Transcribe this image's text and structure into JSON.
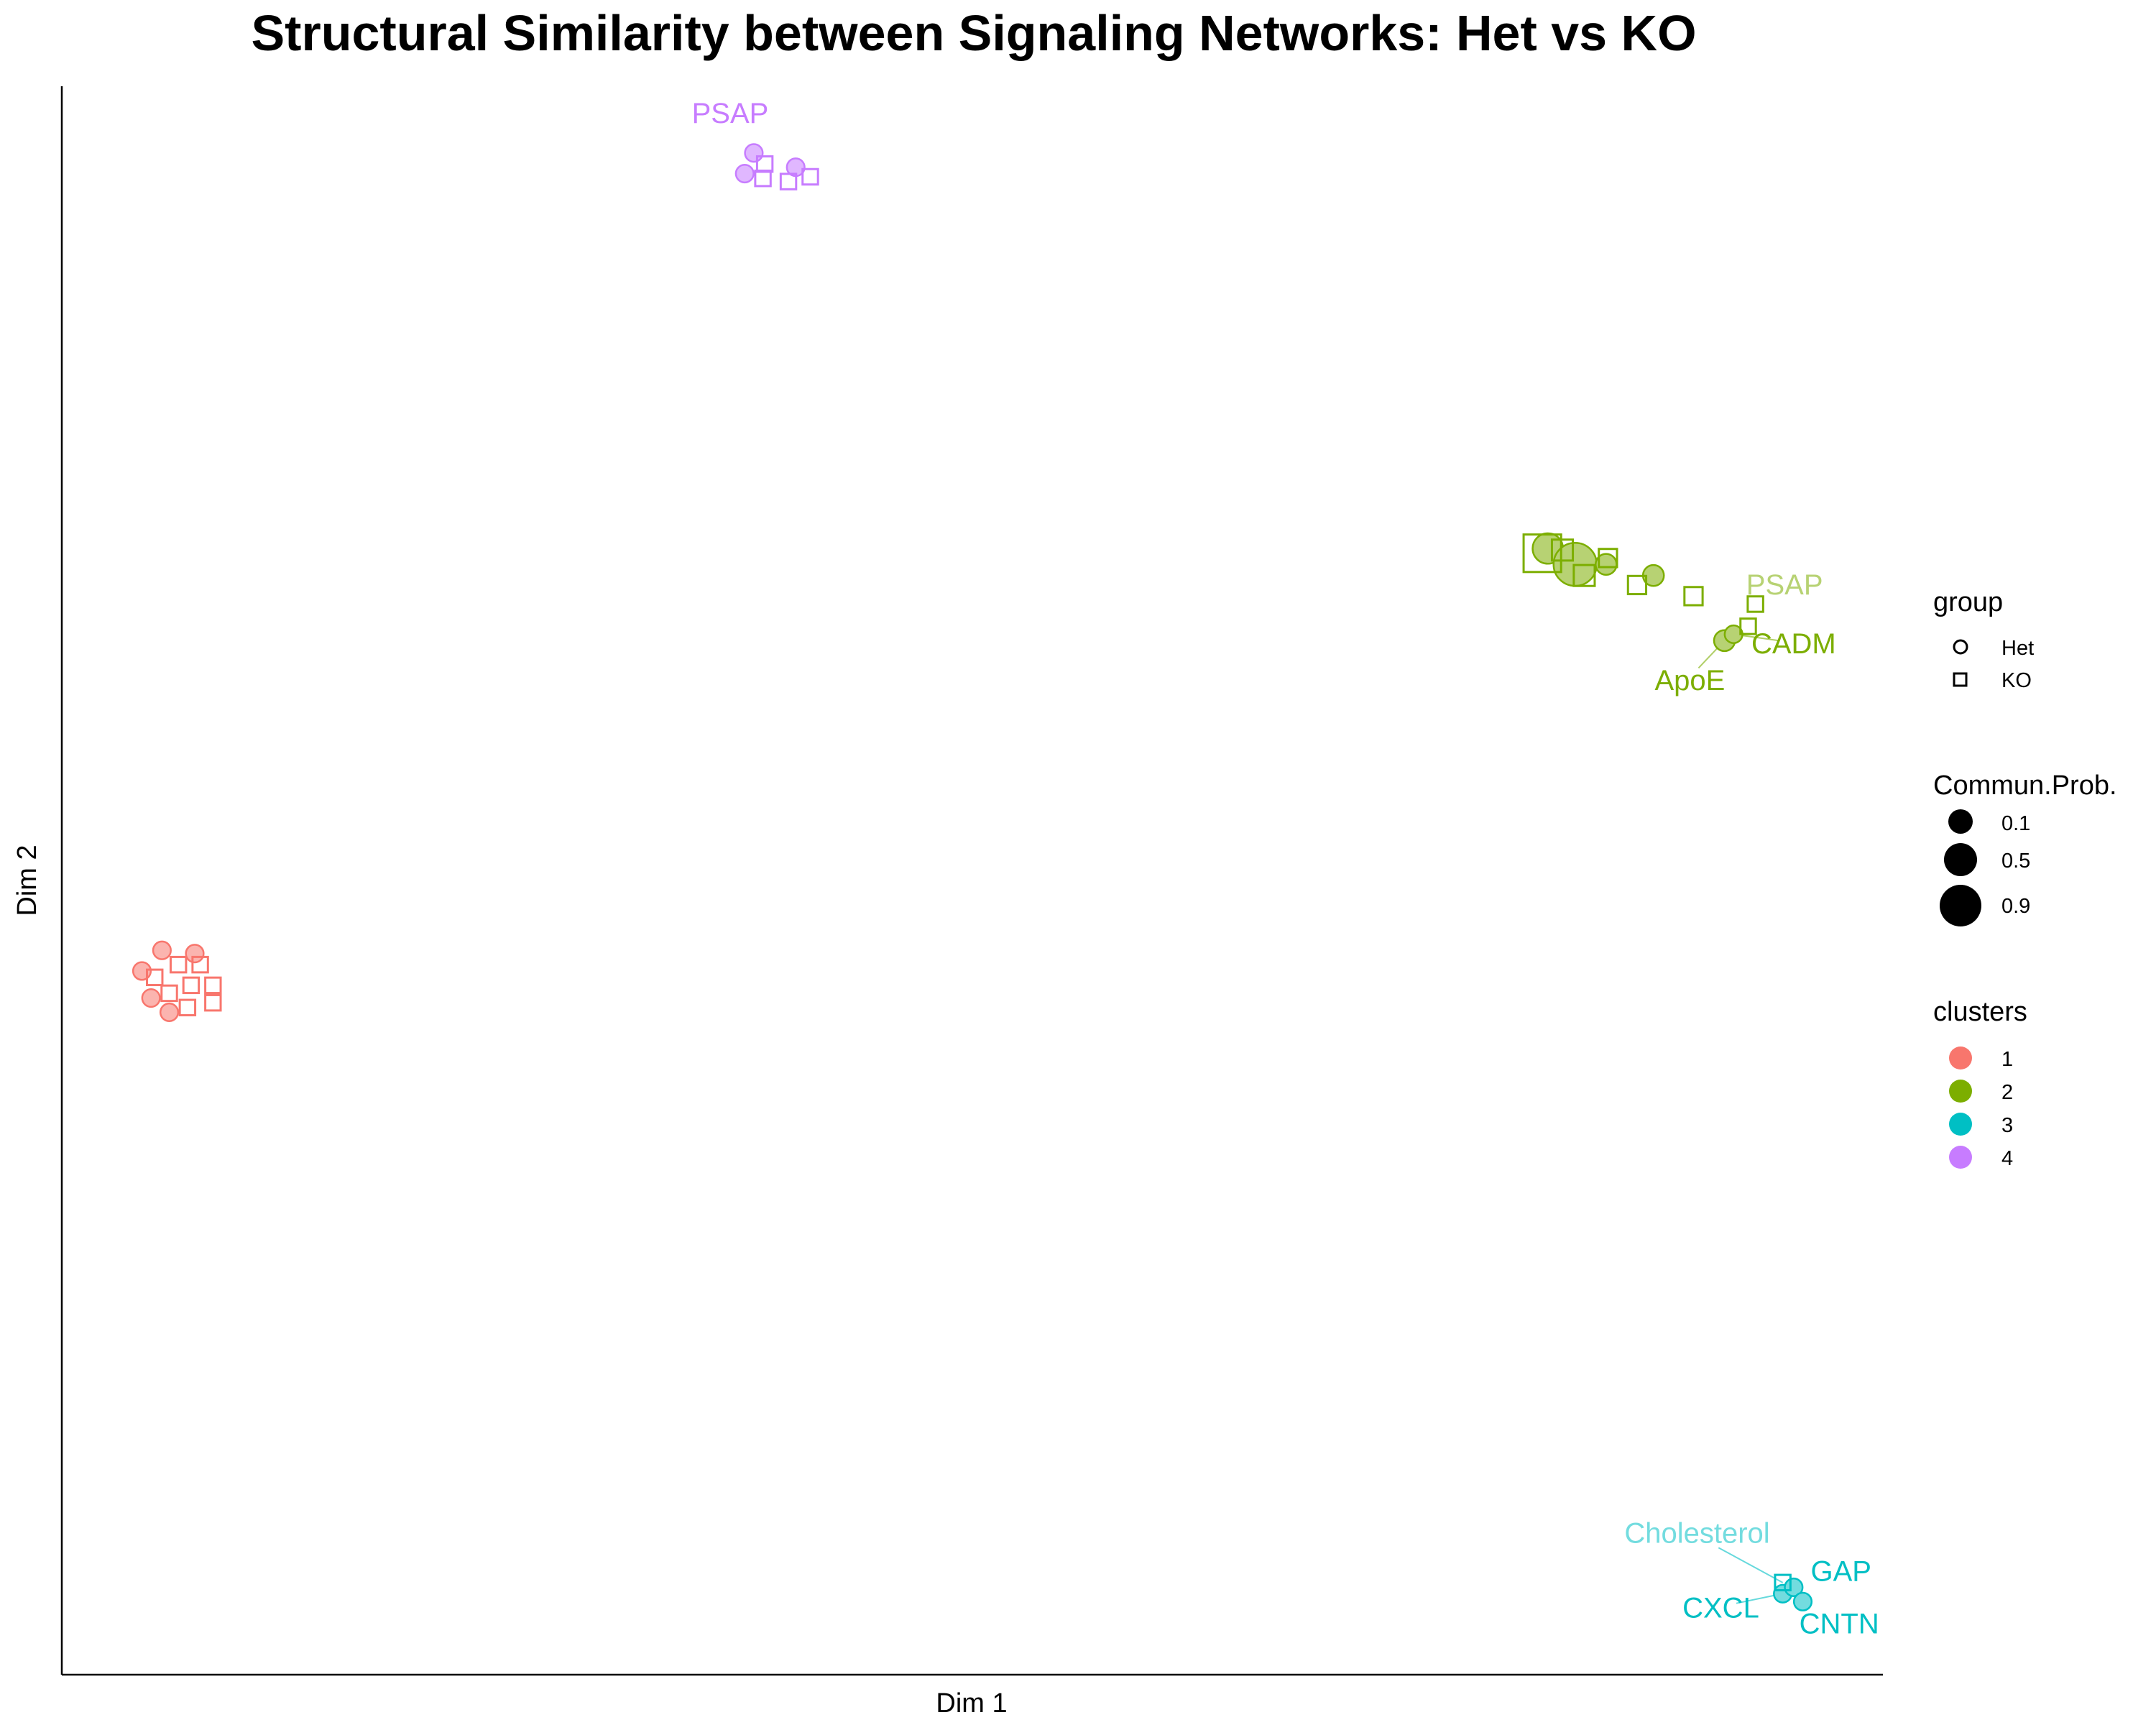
{
  "chart_data": {
    "type": "scatter",
    "title": "Structural Similarity between Signaling Networks: Het vs KO",
    "xlabel": "Dim 1",
    "ylabel": "Dim 2",
    "xlim": [
      0,
      100
    ],
    "ylim": [
      0,
      100
    ],
    "grid": false,
    "legend_position": "right",
    "legends": {
      "group": {
        "title": "group",
        "entries": [
          {
            "label": "Het",
            "shape": "circle"
          },
          {
            "label": "KO",
            "shape": "square"
          }
        ]
      },
      "size": {
        "title": "Commun.Prob.",
        "entries": [
          "0.1",
          "0.5",
          "0.9"
        ]
      },
      "clusters": {
        "title": "clusters",
        "entries": [
          {
            "label": "1",
            "color": "#F8766D"
          },
          {
            "label": "2",
            "color": "#7CAE00"
          },
          {
            "label": "3",
            "color": "#00BFC4"
          },
          {
            "label": "4",
            "color": "#C77CFF"
          }
        ]
      }
    },
    "cluster_colors": {
      "1": "#F8766D",
      "2": "#7CAE00",
      "3": "#00BFC4",
      "4": "#C77CFF"
    },
    "points": [
      {
        "x": 4.4,
        "y": 44.3,
        "cluster": "1",
        "group": "Het",
        "prob": 0.1
      },
      {
        "x": 5.5,
        "y": 45.6,
        "cluster": "1",
        "group": "Het",
        "prob": 0.1
      },
      {
        "x": 7.3,
        "y": 45.4,
        "cluster": "1",
        "group": "Het",
        "prob": 0.1
      },
      {
        "x": 4.9,
        "y": 42.6,
        "cluster": "1",
        "group": "Het",
        "prob": 0.1
      },
      {
        "x": 5.9,
        "y": 41.7,
        "cluster": "1",
        "group": "Het",
        "prob": 0.1
      },
      {
        "x": 5.1,
        "y": 43.9,
        "cluster": "1",
        "group": "KO",
        "prob": 0.1
      },
      {
        "x": 6.4,
        "y": 44.7,
        "cluster": "1",
        "group": "KO",
        "prob": 0.1
      },
      {
        "x": 7.6,
        "y": 44.7,
        "cluster": "1",
        "group": "KO",
        "prob": 0.1
      },
      {
        "x": 5.9,
        "y": 42.9,
        "cluster": "1",
        "group": "KO",
        "prob": 0.1
      },
      {
        "x": 7.1,
        "y": 43.4,
        "cluster": "1",
        "group": "KO",
        "prob": 0.1
      },
      {
        "x": 8.3,
        "y": 43.4,
        "cluster": "1",
        "group": "KO",
        "prob": 0.1
      },
      {
        "x": 6.9,
        "y": 42.0,
        "cluster": "1",
        "group": "KO",
        "prob": 0.1
      },
      {
        "x": 8.3,
        "y": 42.3,
        "cluster": "1",
        "group": "KO",
        "prob": 0.1
      },
      {
        "x": 38.0,
        "y": 95.8,
        "cluster": "4",
        "group": "Het",
        "prob": 0.1
      },
      {
        "x": 37.5,
        "y": 94.5,
        "cluster": "4",
        "group": "Het",
        "prob": 0.1
      },
      {
        "x": 40.3,
        "y": 94.9,
        "cluster": "4",
        "group": "Het",
        "prob": 0.1
      },
      {
        "x": 38.6,
        "y": 95.1,
        "cluster": "4",
        "group": "KO",
        "prob": 0.1
      },
      {
        "x": 38.5,
        "y": 94.2,
        "cluster": "4",
        "group": "KO",
        "prob": 0.1
      },
      {
        "x": 39.9,
        "y": 94.0,
        "cluster": "4",
        "group": "KO",
        "prob": 0.1
      },
      {
        "x": 41.1,
        "y": 94.3,
        "cluster": "4",
        "group": "KO",
        "prob": 0.1
      },
      {
        "x": 81.6,
        "y": 70.9,
        "cluster": "2",
        "group": "Het",
        "prob": 0.5
      },
      {
        "x": 83.1,
        "y": 69.9,
        "cluster": "2",
        "group": "Het",
        "prob": 0.9
      },
      {
        "x": 84.8,
        "y": 69.9,
        "cluster": "2",
        "group": "Het",
        "prob": 0.2
      },
      {
        "x": 87.4,
        "y": 69.2,
        "cluster": "2",
        "group": "Het",
        "prob": 0.2
      },
      {
        "x": 91.3,
        "y": 65.1,
        "cluster": "2",
        "group": "Het",
        "prob": 0.2
      },
      {
        "x": 91.8,
        "y": 65.5,
        "cluster": "2",
        "group": "Het",
        "prob": 0.1
      },
      {
        "x": 81.3,
        "y": 70.6,
        "cluster": "2",
        "group": "KO",
        "prob": 0.9
      },
      {
        "x": 82.4,
        "y": 70.8,
        "cluster": "2",
        "group": "KO",
        "prob": 0.3
      },
      {
        "x": 83.6,
        "y": 69.2,
        "cluster": "2",
        "group": "KO",
        "prob": 0.3
      },
      {
        "x": 84.9,
        "y": 70.3,
        "cluster": "2",
        "group": "KO",
        "prob": 0.2
      },
      {
        "x": 86.5,
        "y": 68.6,
        "cluster": "2",
        "group": "KO",
        "prob": 0.2
      },
      {
        "x": 89.6,
        "y": 67.9,
        "cluster": "2",
        "group": "KO",
        "prob": 0.2
      },
      {
        "x": 92.6,
        "y": 66.0,
        "cluster": "2",
        "group": "KO",
        "prob": 0.1
      },
      {
        "x": 93.0,
        "y": 67.4,
        "cluster": "2",
        "group": "KO",
        "prob": 0.1
      },
      {
        "x": 94.5,
        "y": 5.1,
        "cluster": "3",
        "group": "Het",
        "prob": 0.1
      },
      {
        "x": 95.1,
        "y": 5.5,
        "cluster": "3",
        "group": "Het",
        "prob": 0.1
      },
      {
        "x": 95.6,
        "y": 4.6,
        "cluster": "3",
        "group": "Het",
        "prob": 0.1
      },
      {
        "x": 94.5,
        "y": 5.8,
        "cluster": "3",
        "group": "KO",
        "prob": 0.1
      }
    ],
    "annotations": [
      {
        "text": "PSAP",
        "cluster": "4",
        "shade": "normal",
        "x": 36.7,
        "y": 97.7,
        "anchor": "middle",
        "point_x": 38.0,
        "point_y": 95.8
      },
      {
        "text": "PSAP",
        "cluster": "2",
        "shade": "light",
        "x": 94.6,
        "y": 68.0,
        "anchor": "middle",
        "point_x": 93.0,
        "point_y": 67.4
      },
      {
        "text": "CADM",
        "cluster": "2",
        "shade": "normal",
        "x": 95.1,
        "y": 64.3,
        "anchor": "middle",
        "point_x": 91.8,
        "point_y": 65.5
      },
      {
        "text": "ApoE",
        "cluster": "2",
        "shade": "normal",
        "x": 89.4,
        "y": 62.0,
        "anchor": "middle",
        "point_x": 91.3,
        "point_y": 65.1
      },
      {
        "text": "Cholesterol",
        "cluster": "3",
        "shade": "light",
        "x": 89.8,
        "y": 8.3,
        "anchor": "middle",
        "point_x": 94.5,
        "point_y": 5.8
      },
      {
        "text": "GAP",
        "cluster": "3",
        "shade": "normal",
        "x": 97.7,
        "y": 5.9,
        "anchor": "middle",
        "point_x": 95.1,
        "point_y": 5.5
      },
      {
        "text": "CXCL",
        "cluster": "3",
        "shade": "normal",
        "x": 91.1,
        "y": 3.6,
        "anchor": "middle",
        "point_x": 94.5,
        "point_y": 5.1
      },
      {
        "text": "CNTN",
        "cluster": "3",
        "shade": "normal",
        "x": 97.6,
        "y": 2.6,
        "anchor": "middle",
        "point_x": 95.6,
        "point_y": 4.6
      }
    ]
  }
}
